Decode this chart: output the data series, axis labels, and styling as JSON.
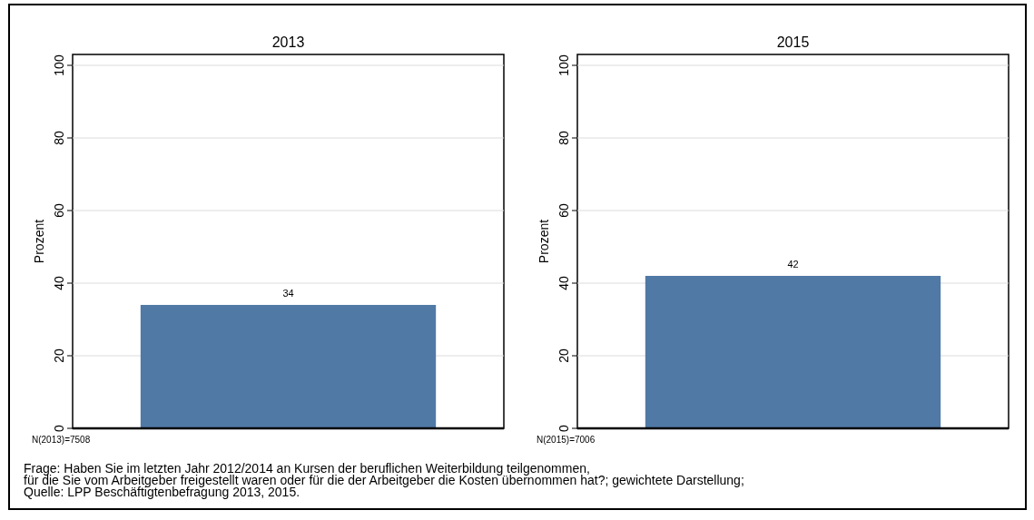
{
  "chart_data": [
    {
      "type": "bar",
      "title": "2013",
      "ylabel": "Prozent",
      "categories": [
        null
      ],
      "values": [
        34
      ],
      "color": "#5079a5",
      "ylim": [
        0,
        103
      ],
      "yticks": [
        0,
        20,
        40,
        60,
        80,
        100
      ],
      "grid": "y",
      "data_labels": true,
      "annotations": [
        "N(2013)=7508",
        "Frage: Haben Sie im letzten Jahr 2012/2014 an Kursen der beruflichen Weiterbildung teilgenommen,",
        "für die Sie vom Arbeitgeber freigestellt waren oder für die der Arbeitgeber die Kosten übernommen hat?; gewichtete Darstellung;",
        "Quelle: LPP Beschäftigtenbefragung 2013, 2015."
      ]
    },
    {
      "type": "bar",
      "title": "2015",
      "ylabel": "Prozent",
      "categories": [
        null
      ],
      "values": [
        42
      ],
      "color": "#5079a5",
      "ylim": [
        0,
        103
      ],
      "yticks": [
        0,
        20,
        40,
        60,
        80,
        100
      ],
      "grid": "y",
      "data_labels": true,
      "annotations": [
        "N(2015)=7006"
      ]
    }
  ]
}
